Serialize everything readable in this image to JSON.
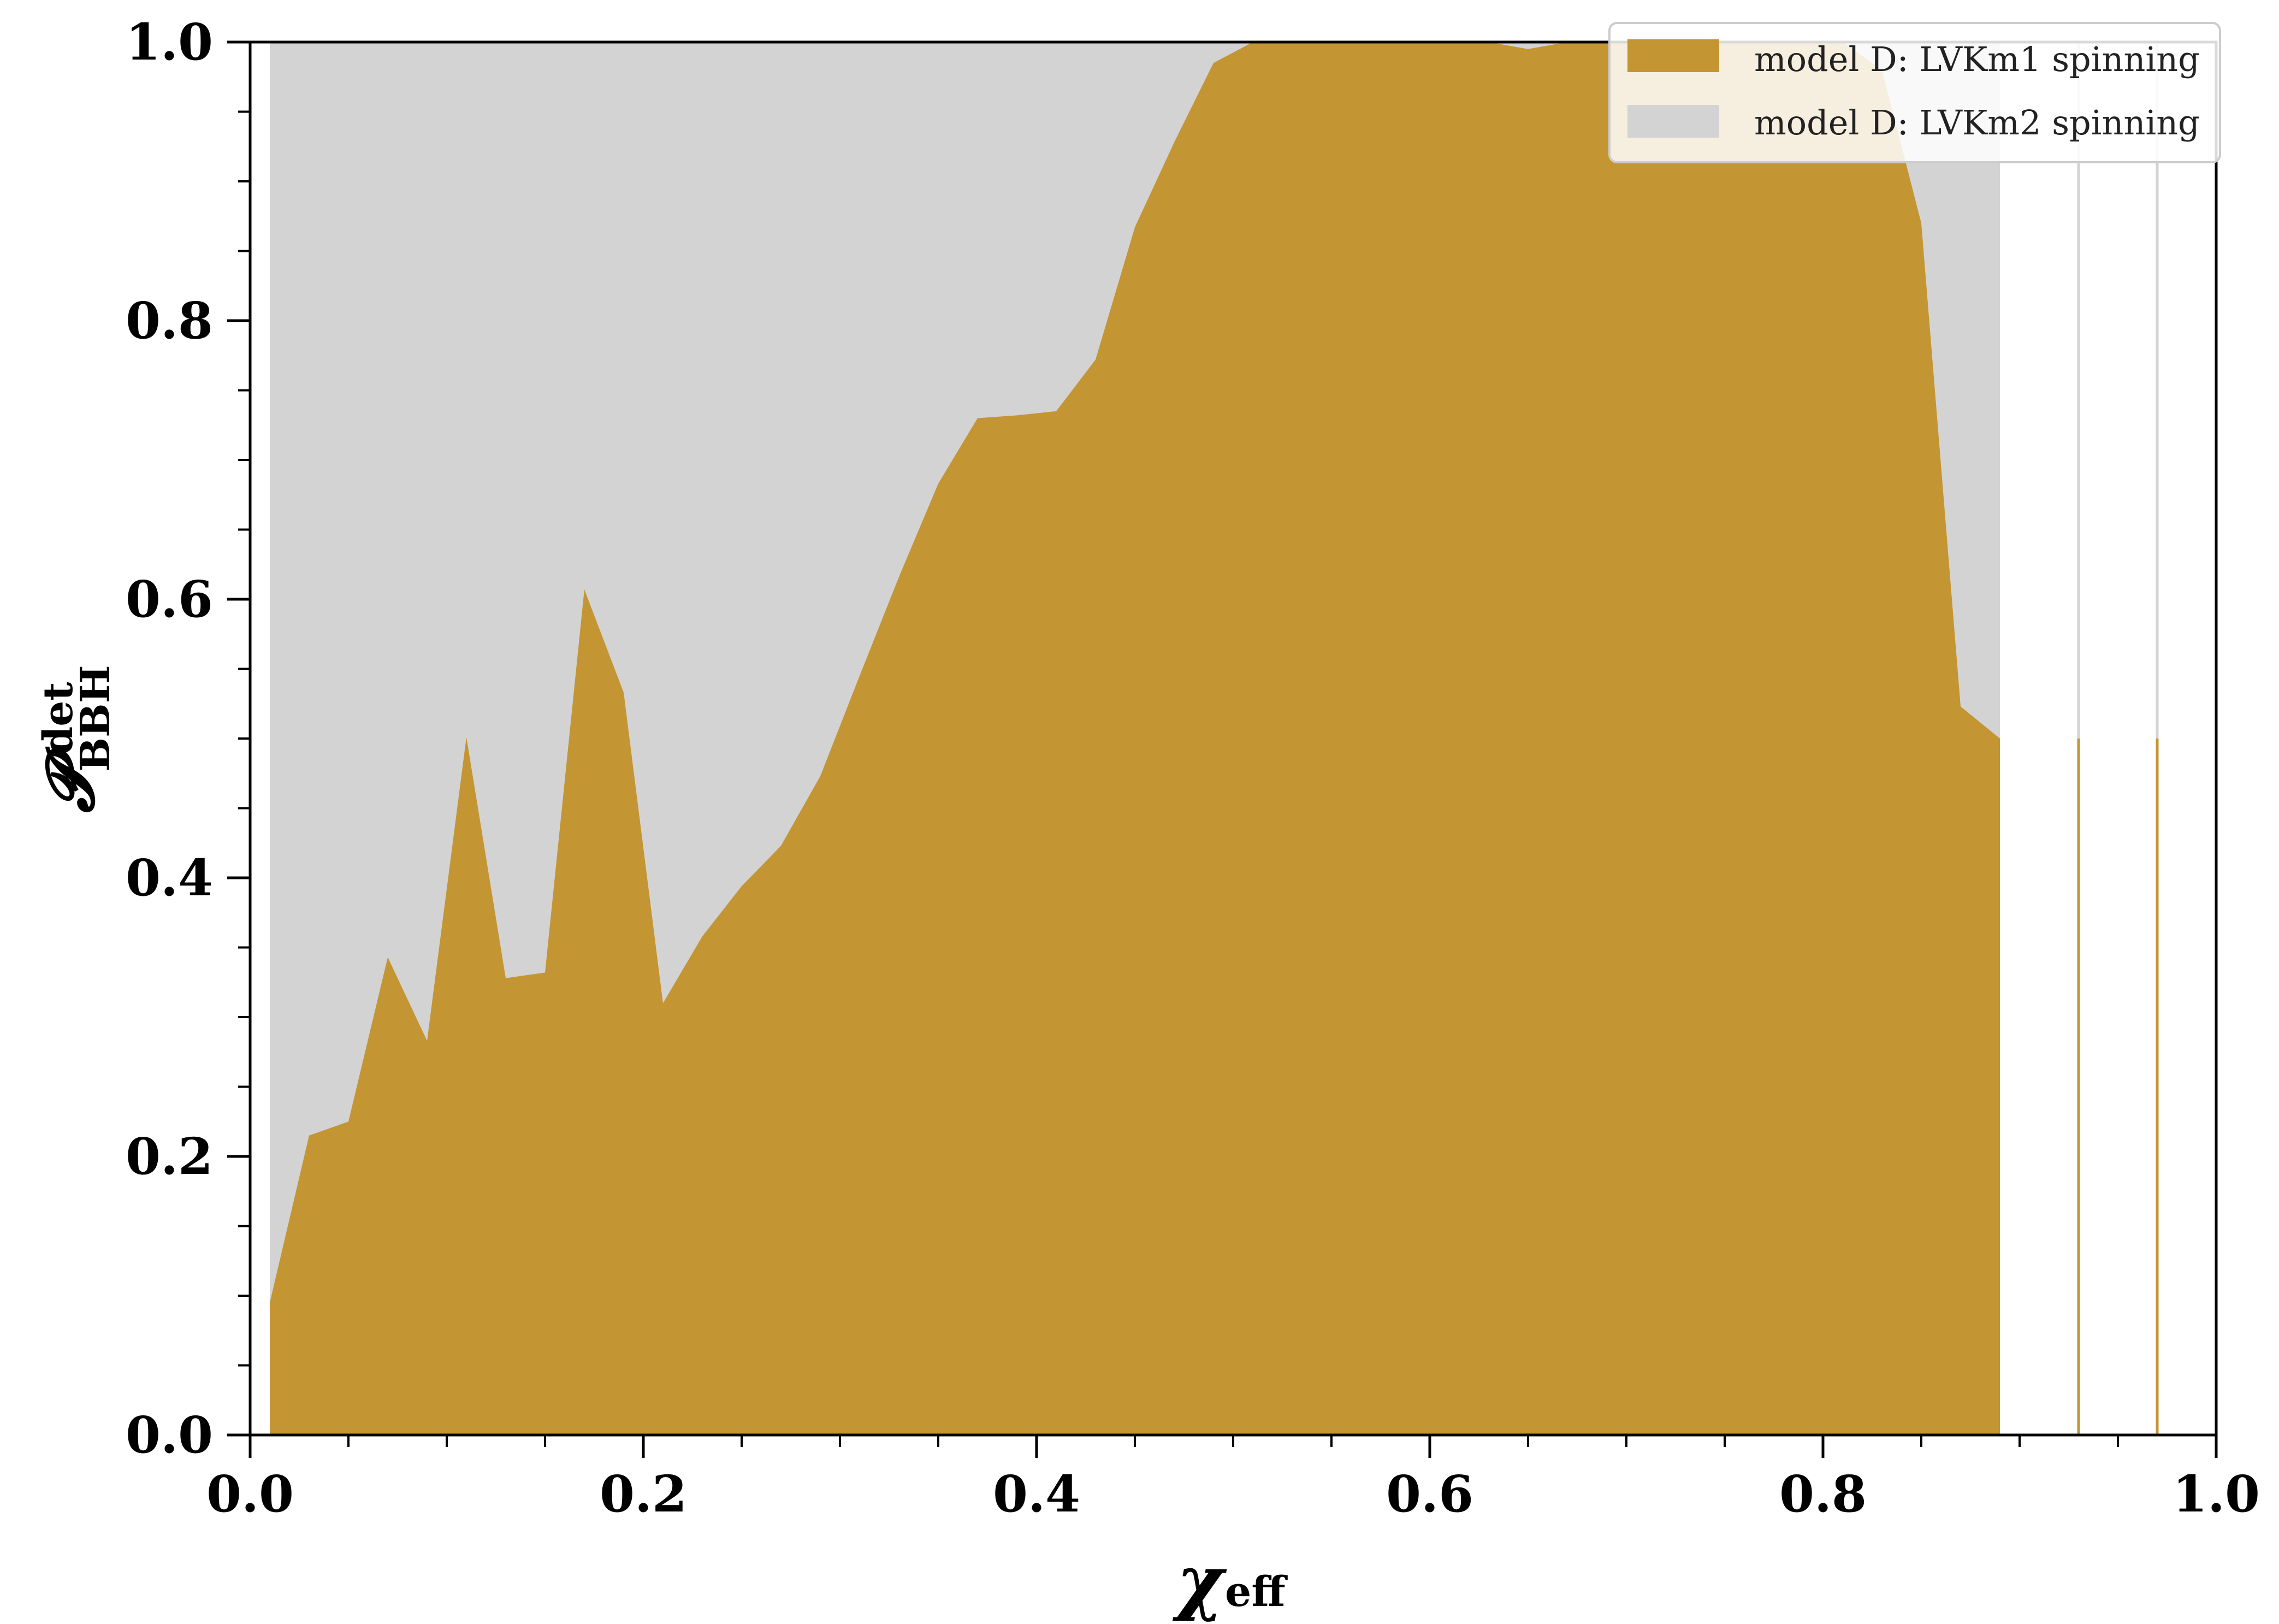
{
  "chart_data": {
    "type": "area",
    "xlabel": "χ",
    "xlabel_sub": "eff",
    "ylabel": "𝓟",
    "ylabel_sup": "det",
    "ylabel_sub": "BBH",
    "xlim": [
      0.0,
      1.0
    ],
    "ylim": [
      0.0,
      1.0
    ],
    "xticks": [
      "0.0",
      "0.2",
      "0.4",
      "0.6",
      "0.8",
      "1.0"
    ],
    "yticks": [
      "0.0",
      "0.2",
      "0.4",
      "0.6",
      "0.8",
      "1.0"
    ],
    "legend_position": "top-right",
    "series": [
      {
        "name": "model D: LVKm2 spinning",
        "color": "#d3d3d3",
        "x": [
          0.01,
          0.89
        ],
        "y": [
          1.0,
          1.0
        ],
        "spikes": [
          {
            "x": 0.93,
            "y": 1.0
          },
          {
            "x": 0.97,
            "y": 1.0
          }
        ]
      },
      {
        "name": "model D: LVKm1 spinning",
        "color": "#c39533",
        "x": [
          0.01,
          0.03,
          0.05,
          0.07,
          0.09,
          0.11,
          0.13,
          0.15,
          0.17,
          0.19,
          0.21,
          0.23,
          0.25,
          0.27,
          0.29,
          0.31,
          0.33,
          0.35,
          0.37,
          0.39,
          0.41,
          0.43,
          0.45,
          0.47,
          0.49,
          0.51,
          0.53,
          0.55,
          0.57,
          0.59,
          0.61,
          0.63,
          0.65,
          0.67,
          0.69,
          0.71,
          0.73,
          0.75,
          0.77,
          0.79,
          0.81,
          0.83,
          0.85,
          0.87,
          0.89
        ],
        "y": [
          0.095,
          0.215,
          0.225,
          0.343,
          0.283,
          0.501,
          0.328,
          0.332,
          0.607,
          0.533,
          0.31,
          0.358,
          0.394,
          0.423,
          0.473,
          0.545,
          0.616,
          0.683,
          0.73,
          0.732,
          0.735,
          0.772,
          0.867,
          0.928,
          0.985,
          1.0,
          1.0,
          1.0,
          1.0,
          1.0,
          1.0,
          1.0,
          0.995,
          1.0,
          1.0,
          1.0,
          1.0,
          1.0,
          1.0,
          1.0,
          1.0,
          0.98,
          0.87,
          0.523,
          0.5
        ],
        "spikes": [
          {
            "x": 0.93,
            "y": 0.5
          },
          {
            "x": 0.97,
            "y": 0.5
          }
        ]
      }
    ]
  }
}
